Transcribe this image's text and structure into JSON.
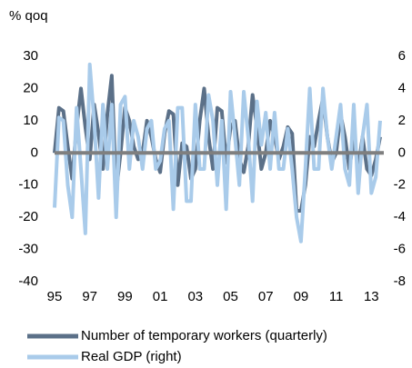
{
  "chart_data": {
    "type": "line",
    "y_label": "% qoq",
    "x": [
      1995,
      1995.25,
      1995.5,
      1995.75,
      1996,
      1996.25,
      1996.5,
      1996.75,
      1997,
      1997.25,
      1997.5,
      1997.75,
      1998,
      1998.25,
      1998.5,
      1998.75,
      1999,
      1999.25,
      1999.5,
      1999.75,
      2000,
      2000.25,
      2000.5,
      2000.75,
      2001,
      2001.25,
      2001.5,
      2001.75,
      2002,
      2002.25,
      2002.5,
      2002.75,
      2003,
      2003.25,
      2003.5,
      2003.75,
      2004,
      2004.25,
      2004.5,
      2004.75,
      2005,
      2005.25,
      2005.5,
      2005.75,
      2006,
      2006.25,
      2006.5,
      2006.75,
      2007,
      2007.25,
      2007.5,
      2007.75,
      2008,
      2008.25,
      2008.5,
      2008.75,
      2009,
      2009.25,
      2009.5,
      2009.75,
      2010,
      2010.25,
      2010.5,
      2010.75,
      2011,
      2011.25,
      2011.5,
      2011.75,
      2012,
      2012.25,
      2012.5,
      2012.75,
      2013,
      2013.25,
      2013.5
    ],
    "series": [
      {
        "name": "Number of temporary workers (quarterly)",
        "color": "#5b7088",
        "axis": "y",
        "values": [
          0,
          14,
          13,
          2,
          -8,
          8,
          20,
          8,
          -2,
          15,
          6,
          -5,
          12,
          24,
          -12,
          0,
          14,
          10,
          2,
          -2,
          0,
          10,
          5,
          -2,
          -6,
          6,
          13,
          12,
          -10,
          3,
          2,
          -8,
          -5,
          10,
          20,
          5,
          -5,
          14,
          13,
          -3,
          8,
          10,
          -2,
          -6,
          2,
          18,
          8,
          -5,
          0,
          10,
          5,
          -2,
          2,
          8,
          6,
          -18,
          -18,
          -10,
          5,
          2,
          10,
          17,
          5,
          -3,
          0,
          12,
          5,
          -5,
          5,
          -5,
          5,
          -5,
          -7,
          -2,
          5
        ]
      },
      {
        "name": "Real GDP (right)",
        "color": "#a9cbea",
        "axis": "y2",
        "values": [
          -3.4,
          2.2,
          2,
          -2,
          -4,
          2.8,
          -1,
          -5,
          5.5,
          2,
          -2.8,
          3,
          -1,
          3,
          -4,
          3,
          3.5,
          -1,
          2,
          1,
          -1,
          1.5,
          2,
          -1,
          -0.5,
          1.5,
          2,
          -3.5,
          2.8,
          2.8,
          -3,
          -3,
          3,
          -1,
          -1,
          3.6,
          2,
          -2,
          2,
          -3.5,
          3.8,
          1,
          -2,
          3.8,
          1,
          -3,
          3.2,
          0.5,
          2.5,
          -1,
          2.5,
          -1,
          -1,
          1.5,
          -1,
          -4,
          -5.5,
          -1,
          4,
          -1,
          -1,
          4,
          1,
          -1,
          1,
          3,
          -1,
          -2,
          3,
          -2.5,
          1,
          3,
          -2.5,
          -1.5,
          2
        ]
      }
    ],
    "xlim": [
      1995,
      2013.5
    ],
    "xticks": [
      {
        "value": 1995,
        "label": "95"
      },
      {
        "value": 1997,
        "label": "97"
      },
      {
        "value": 1999,
        "label": "99"
      },
      {
        "value": 2001,
        "label": "01"
      },
      {
        "value": 2003,
        "label": "03"
      },
      {
        "value": 2005,
        "label": "05"
      },
      {
        "value": 2007,
        "label": "07"
      },
      {
        "value": 2009,
        "label": "09"
      },
      {
        "value": 2011,
        "label": "11"
      },
      {
        "value": 2013,
        "label": "13"
      }
    ],
    "ylim": [
      -40,
      30
    ],
    "yticks": [
      -40,
      -30,
      -20,
      -10,
      0,
      10,
      20,
      30
    ],
    "y2lim": [
      -8,
      6
    ],
    "y2ticks": [
      -8,
      -6,
      -4,
      -2,
      0,
      2,
      4,
      6
    ]
  }
}
